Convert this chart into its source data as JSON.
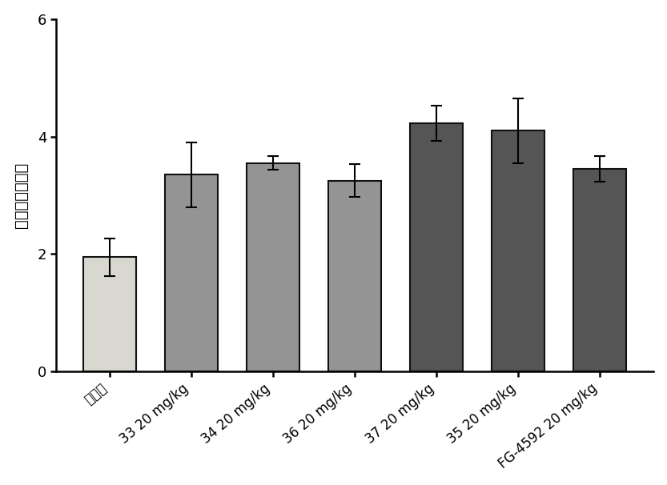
{
  "categories": [
    "空白组",
    "33 20 mg/kg",
    "34 20 mg/kg",
    "36 20 mg/kg",
    "37 20 mg/kg",
    "35 20 mg/kg",
    "FG-4592 20 mg/kg"
  ],
  "values": [
    1.95,
    3.35,
    3.55,
    3.25,
    4.22,
    4.1,
    3.45
  ],
  "errors": [
    0.32,
    0.55,
    0.12,
    0.28,
    0.3,
    0.55,
    0.22
  ],
  "bar_colors": [
    "#d8d8d0",
    "#949494",
    "#949494",
    "#949494",
    "#555555",
    "#555555",
    "#555555"
  ],
  "bar_edgecolors": [
    "#111111",
    "#111111",
    "#111111",
    "#111111",
    "#111111",
    "#111111",
    "#111111"
  ],
  "ylabel": "网织红细胞比率",
  "ylim": [
    0,
    6
  ],
  "yticks": [
    0,
    2,
    4,
    6
  ],
  "bar_width": 0.65,
  "error_capsize": 5,
  "error_linewidth": 1.5,
  "background_color": "#ffffff",
  "tick_fontsize": 12,
  "ylabel_fontsize": 14,
  "edge_linewidth": 1.5
}
